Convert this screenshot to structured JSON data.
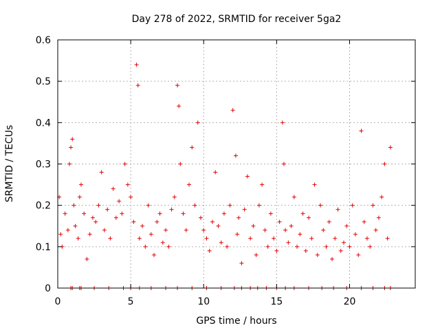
{
  "chart_data": {
    "type": "scatter",
    "title": "Day 278 of 2022, SRMTID for receiver 5ga2",
    "xlabel": "GPS time / hours",
    "ylabel": "SRMTID / TECUs",
    "xlim": [
      0,
      24.5
    ],
    "ylim": [
      0,
      0.6
    ],
    "xticks": [
      "0",
      "5",
      "10",
      "15",
      "20"
    ],
    "xtick_values": [
      0,
      5,
      10,
      15,
      20
    ],
    "yticks": [
      "0",
      "0.1",
      "0.2",
      "0.3",
      "0.4",
      "0.5",
      "0.6"
    ],
    "ytick_values": [
      0,
      0.1,
      0.2,
      0.3,
      0.4,
      0.5,
      0.6
    ],
    "grid": true,
    "marker": "+",
    "color": "#e00000",
    "series": [
      {
        "name": "SRMTID",
        "x": [
          0.1,
          0.2,
          0.3,
          0.5,
          0.7,
          0.8,
          0.9,
          1.0,
          1.1,
          1.2,
          1.4,
          1.5,
          1.6,
          1.8,
          2.0,
          2.2,
          2.4,
          2.6,
          2.8,
          3.0,
          3.2,
          3.4,
          3.6,
          3.8,
          4.0,
          4.2,
          4.4,
          4.6,
          4.8,
          5.0,
          5.2,
          5.4,
          5.5,
          5.6,
          5.8,
          6.0,
          6.2,
          6.4,
          6.6,
          6.8,
          7.0,
          7.2,
          7.4,
          7.6,
          7.8,
          8.0,
          8.2,
          8.3,
          8.4,
          8.6,
          8.8,
          9.0,
          9.2,
          9.4,
          9.6,
          9.8,
          10.0,
          10.2,
          10.4,
          10.6,
          10.8,
          11.0,
          11.2,
          11.4,
          11.6,
          11.8,
          12.0,
          12.2,
          12.3,
          12.4,
          12.6,
          12.8,
          13.0,
          13.2,
          13.4,
          13.6,
          13.8,
          14.0,
          14.2,
          14.4,
          14.6,
          14.8,
          15.0,
          15.2,
          15.4,
          15.5,
          15.6,
          15.8,
          16.0,
          16.2,
          16.4,
          16.6,
          16.8,
          17.0,
          17.2,
          17.4,
          17.6,
          17.8,
          18.0,
          18.2,
          18.4,
          18.6,
          18.8,
          19.0,
          19.2,
          19.4,
          19.6,
          19.8,
          20.0,
          20.2,
          20.4,
          20.6,
          20.8,
          21.0,
          21.2,
          21.4,
          21.6,
          21.8,
          22.0,
          22.2,
          22.4,
          22.6,
          22.8
        ],
        "y": [
          0.22,
          0.13,
          0.1,
          0.18,
          0.14,
          0.3,
          0.34,
          0.36,
          0.2,
          0.15,
          0.12,
          0.22,
          0.25,
          0.18,
          0.07,
          0.13,
          0.17,
          0.16,
          0.2,
          0.28,
          0.14,
          0.19,
          0.12,
          0.24,
          0.17,
          0.21,
          0.18,
          0.3,
          0.25,
          0.22,
          0.16,
          0.54,
          0.49,
          0.12,
          0.15,
          0.1,
          0.2,
          0.13,
          0.08,
          0.16,
          0.18,
          0.11,
          0.14,
          0.1,
          0.19,
          0.22,
          0.49,
          0.44,
          0.3,
          0.18,
          0.14,
          0.25,
          0.34,
          0.2,
          0.4,
          0.17,
          0.14,
          0.12,
          0.09,
          0.16,
          0.28,
          0.15,
          0.11,
          0.18,
          0.1,
          0.2,
          0.43,
          0.32,
          0.13,
          0.17,
          0.06,
          0.19,
          0.27,
          0.12,
          0.15,
          0.08,
          0.2,
          0.25,
          0.14,
          0.1,
          0.18,
          0.12,
          0.09,
          0.16,
          0.4,
          0.3,
          0.14,
          0.11,
          0.15,
          0.22,
          0.1,
          0.13,
          0.18,
          0.09,
          0.17,
          0.12,
          0.25,
          0.08,
          0.2,
          0.14,
          0.1,
          0.16,
          0.07,
          0.12,
          0.19,
          0.09,
          0.11,
          0.15,
          0.1,
          0.2,
          0.13,
          0.08,
          0.38,
          0.16,
          0.12,
          0.1,
          0.2,
          0.14,
          0.17,
          0.22,
          0.3,
          0.12,
          0.34
        ]
      }
    ],
    "zero_markers_x": [
      0.9,
      1.0,
      1.5,
      1.6,
      2.5,
      3.5,
      4.5,
      5.0,
      5.6,
      6.4,
      7.4,
      8.2,
      9.2,
      10.2,
      11.2,
      12.1,
      12.6,
      13.2,
      13.7,
      14.3,
      15.0,
      15.6,
      16.2,
      17.2,
      18.1,
      18.9,
      19.8,
      20.8,
      21.6,
      22.4,
      22.8
    ]
  }
}
